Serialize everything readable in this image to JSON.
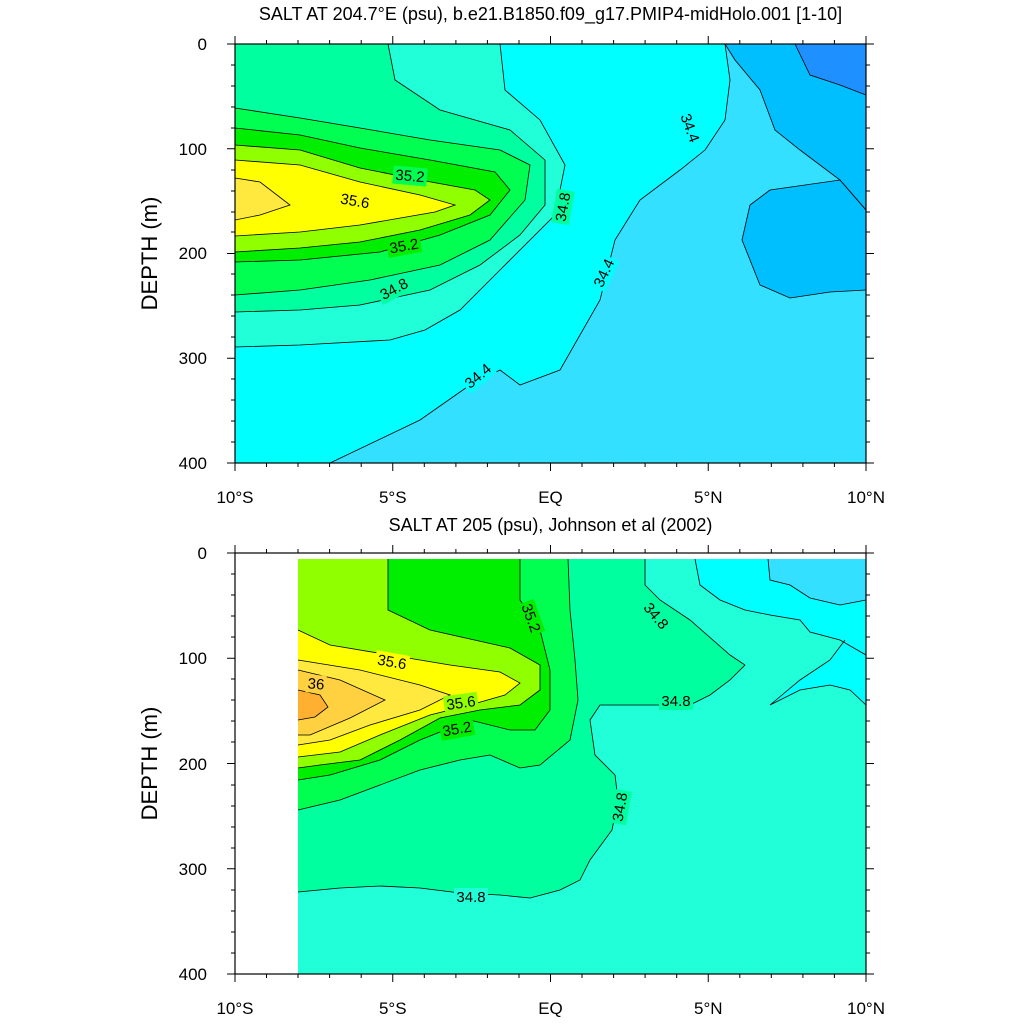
{
  "panels": [
    {
      "title": "SALT AT 204.7°E (psu), b.e21.B1850.f09_g17.PMIP4-midHolo.001 [1-10]",
      "ylabel": "DEPTH (m)",
      "xticks": [
        "10°S",
        "5°S",
        "EQ",
        "5°N",
        "10°N"
      ],
      "yticks": [
        "0",
        "100",
        "200",
        "300",
        "400"
      ],
      "contour_labels": [
        "34.4",
        "35.2",
        "35.6",
        "34.8",
        "35.2",
        "34.8",
        "34.4",
        "34.4"
      ]
    },
    {
      "title": "SALT AT 205 (psu), Johnson et al (2002)",
      "ylabel": "DEPTH (m)",
      "xticks": [
        "10°S",
        "5°S",
        "EQ",
        "5°N",
        "10°N"
      ],
      "yticks": [
        "0",
        "100",
        "200",
        "300",
        "400"
      ],
      "contour_labels": [
        "35.2",
        "34.8",
        "35.6",
        "36",
        "34.8",
        "35.6",
        "35.2",
        "34.8",
        "34.8"
      ]
    }
  ],
  "colors": {
    "c33_8": "#1e90ff",
    "c34_0": "#00bfff",
    "c34_2": "#33e0ff",
    "c34_4": "#00ffff",
    "c34_6": "#20ffd8",
    "c34_8": "#00ff9f",
    "c35_0": "#00ff50",
    "c35_2": "#00ee00",
    "c35_4": "#90ff00",
    "c35_6": "#ffff00",
    "c35_8": "#ffe93f",
    "c36_0": "#ffd040",
    "c36_2": "#ffb030"
  },
  "chart_data": [
    {
      "type": "heatmap",
      "subtype": "filled-contour",
      "title": "SALT AT 204.7°E (psu), b.e21.B1850.f09_g17.PMIP4-midHolo.001 [1-10]",
      "xlabel": "",
      "ylabel": "DEPTH (m)",
      "x_range": [
        -10,
        10
      ],
      "y_range": [
        0,
        400
      ],
      "y_reversed": true,
      "x_ticks": [
        "10°S",
        "5°S",
        "EQ",
        "5°N",
        "10°N"
      ],
      "y_ticks": [
        0,
        100,
        200,
        300,
        400
      ],
      "contour_levels": [
        34.0,
        34.2,
        34.4,
        34.6,
        34.8,
        35.0,
        35.2,
        35.4,
        35.6,
        35.8
      ],
      "labeled_contours": [
        {
          "value": 34.4,
          "lat": 4.3,
          "depth": 85
        },
        {
          "value": 35.2,
          "lat": -4.5,
          "depth": 125
        },
        {
          "value": 35.6,
          "lat": -5.3,
          "depth": 150
        },
        {
          "value": 34.8,
          "lat": 0.4,
          "depth": 160
        },
        {
          "value": 35.2,
          "lat": -4.5,
          "depth": 188
        },
        {
          "value": 34.8,
          "lat": -4.6,
          "depth": 228
        },
        {
          "value": 34.4,
          "lat": 1.7,
          "depth": 210
        },
        {
          "value": 34.4,
          "lat": -2.2,
          "depth": 310
        }
      ],
      "max_salinity": {
        "value": 35.8,
        "lat": -9.2,
        "depth": 160
      },
      "min_salinity": {
        "value": 33.8,
        "lat": 9.8,
        "depth": 0
      }
    },
    {
      "type": "heatmap",
      "subtype": "filled-contour",
      "title": "SALT AT 205 (psu), Johnson et al (2002)",
      "xlabel": "",
      "ylabel": "DEPTH (m)",
      "x_range": [
        -10,
        10
      ],
      "y_range": [
        0,
        400
      ],
      "y_reversed": true,
      "x_ticks": [
        "10°S",
        "5°S",
        "EQ",
        "5°N",
        "10°N"
      ],
      "y_ticks": [
        0,
        100,
        200,
        300,
        400
      ],
      "data_coverage_lat": [
        -8,
        10
      ],
      "contour_levels": [
        34.4,
        34.6,
        34.8,
        35.0,
        35.2,
        35.4,
        35.6,
        35.8,
        36.0,
        36.2
      ],
      "labeled_contours": [
        {
          "value": 35.2,
          "lat": -0.6,
          "depth": 60
        },
        {
          "value": 34.8,
          "lat": 3.4,
          "depth": 60
        },
        {
          "value": 35.6,
          "lat": -4.5,
          "depth": 100
        },
        {
          "value": 36.0,
          "lat": -7.4,
          "depth": 123
        },
        {
          "value": 34.8,
          "lat": 4.0,
          "depth": 137
        },
        {
          "value": 35.6,
          "lat": -2.8,
          "depth": 140
        },
        {
          "value": 35.2,
          "lat": -3.1,
          "depth": 165
        },
        {
          "value": 34.8,
          "lat": 2.3,
          "depth": 240
        },
        {
          "value": 34.8,
          "lat": -2.5,
          "depth": 325
        }
      ],
      "max_salinity": {
        "value": 36.2,
        "lat": -7.6,
        "depth": 145
      }
    }
  ]
}
